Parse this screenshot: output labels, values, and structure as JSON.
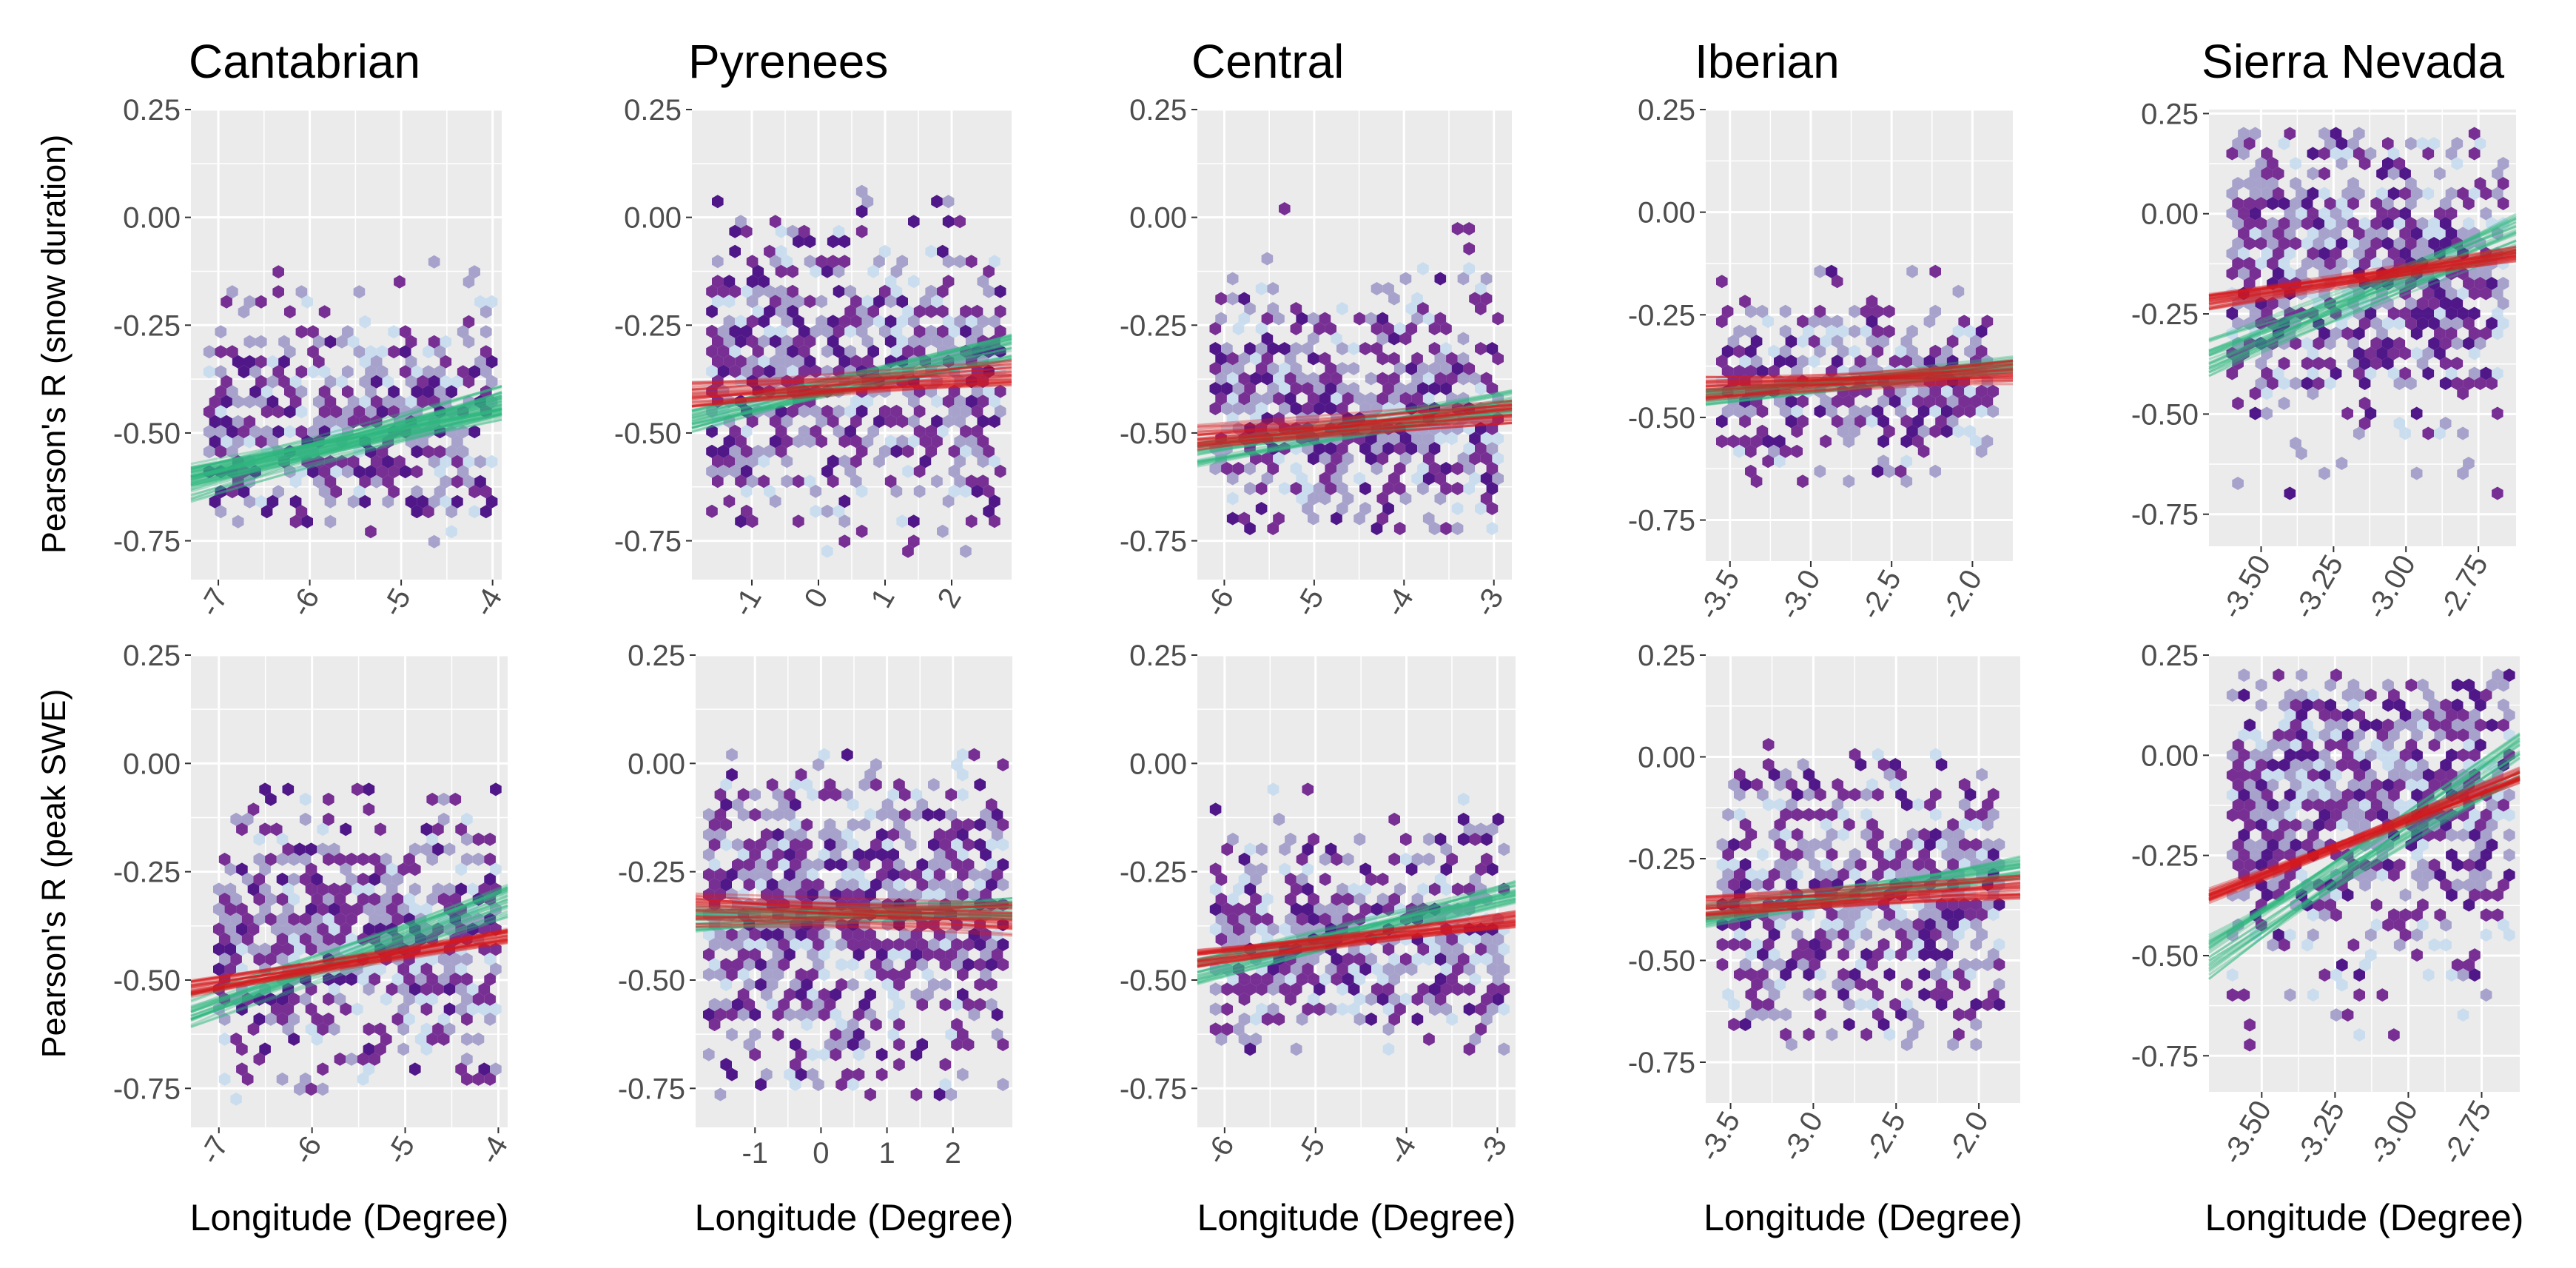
{
  "figure": {
    "x_axis_title": "Longitude (Degree)",
    "row_titles": [
      "Pearson's R (snow duration)",
      "Pearson's R (peak SWE)"
    ]
  },
  "colors": {
    "panel_bg": "#ebebeb",
    "grid": "#ffffff",
    "hex_light": "#c6dbef",
    "hex_mid": "#9e9ac8",
    "hex_dark": "#6a1b8a",
    "hex_darkest": "#3f007d",
    "fit_green": "#2eb67d",
    "fit_red": "#d7191c"
  },
  "chart_data": [
    {
      "type": "hexbin-scatter",
      "region": "Cantabrian",
      "row": "snow duration",
      "title": "Cantabrian",
      "xlabel": "",
      "ylabel": "Pearson's R (snow duration)",
      "xlim": [
        -7.3,
        -3.9
      ],
      "ylim": [
        -0.84,
        0.25
      ],
      "x_ticks": [
        -7,
        -6,
        -5,
        -4
      ],
      "x_tick_labels": [
        "-7",
        "-6",
        "-5",
        "-4"
      ],
      "y_ticks": [
        -0.75,
        -0.5,
        -0.25,
        0,
        0.25
      ],
      "y_tick_labels": [
        "-0.75",
        "-0.50",
        "-0.25",
        "0.00",
        "0.25"
      ],
      "x_label_angle": -60,
      "points_x_range": [
        -7.1,
        -4.0
      ],
      "points_y_range": [
        -0.76,
        -0.08
      ],
      "point_centre_y": -0.47,
      "point_spread_y": 0.13,
      "fits": [
        {
          "color": "green",
          "x": [
            -7.3,
            -3.9
          ],
          "y": [
            -0.62,
            -0.43
          ],
          "spread": 0.04
        },
        {
          "color": "green",
          "x": [
            -7.3,
            -3.9
          ],
          "y": [
            -0.6,
            -0.44
          ],
          "spread": 0.03
        }
      ]
    },
    {
      "type": "hexbin-scatter",
      "region": "Pyrenees",
      "row": "snow duration",
      "title": "Pyrenees",
      "xlabel": "",
      "ylabel": "",
      "xlim": [
        -1.9,
        2.9
      ],
      "ylim": [
        -0.84,
        0.25
      ],
      "x_ticks": [
        -1,
        0,
        1,
        2
      ],
      "x_tick_labels": [
        "-1",
        "0",
        "1",
        "2"
      ],
      "y_ticks": [
        -0.75,
        -0.5,
        -0.25,
        0,
        0.25
      ],
      "y_tick_labels": [
        "-0.75",
        "-0.50",
        "-0.25",
        "0.00",
        "0.25"
      ],
      "x_label_angle": -60,
      "points_x_range": [
        -1.6,
        2.8
      ],
      "points_y_range": [
        -0.78,
        0.06
      ],
      "point_centre_y": -0.37,
      "point_spread_y": 0.18,
      "fits": [
        {
          "color": "green",
          "x": [
            -1.9,
            2.9
          ],
          "y": [
            -0.47,
            -0.3
          ],
          "spread": 0.03
        },
        {
          "color": "red",
          "x": [
            -1.9,
            2.9
          ],
          "y": [
            -0.41,
            -0.36
          ],
          "spread": 0.03
        }
      ]
    },
    {
      "type": "hexbin-scatter",
      "region": "Central",
      "row": "snow duration",
      "title": "Central",
      "xlabel": "",
      "ylabel": "",
      "xlim": [
        -6.3,
        -2.8
      ],
      "ylim": [
        -0.84,
        0.25
      ],
      "x_ticks": [
        -6,
        -5,
        -4,
        -3
      ],
      "x_tick_labels": [
        "-6",
        "-5",
        "-4",
        "-3"
      ],
      "y_ticks": [
        -0.75,
        -0.5,
        -0.25,
        0,
        0.25
      ],
      "y_tick_labels": [
        "-0.75",
        "-0.50",
        "-0.25",
        "0.00",
        "0.25"
      ],
      "x_label_angle": -60,
      "points_x_range": [
        -6.1,
        -2.9
      ],
      "points_y_range": [
        -0.74,
        0.02
      ],
      "point_centre_y": -0.45,
      "point_spread_y": 0.15,
      "fits": [
        {
          "color": "green",
          "x": [
            -6.3,
            -2.8
          ],
          "y": [
            -0.55,
            -0.43
          ],
          "spread": 0.03
        },
        {
          "color": "red",
          "x": [
            -6.3,
            -2.8
          ],
          "y": [
            -0.51,
            -0.45
          ],
          "spread": 0.03
        }
      ]
    },
    {
      "type": "hexbin-scatter",
      "region": "Iberian",
      "row": "snow duration",
      "title": "Iberian",
      "xlabel": "",
      "ylabel": "",
      "xlim": [
        -3.65,
        -1.75
      ],
      "ylim": [
        -0.85,
        0.25
      ],
      "x_ticks": [
        -3.5,
        -3.0,
        -2.5,
        -2.0
      ],
      "x_tick_labels": [
        "-3.5",
        "-3.0",
        "-2.5",
        "-2.0"
      ],
      "y_ticks": [
        -0.75,
        -0.5,
        -0.25,
        0,
        0.25
      ],
      "y_tick_labels": [
        "-0.75",
        "-0.50",
        "-0.25",
        "0.00",
        "0.25"
      ],
      "x_label_angle": -60,
      "points_x_range": [
        -3.55,
        -1.85
      ],
      "points_y_range": [
        -0.66,
        -0.12
      ],
      "point_centre_y": -0.42,
      "point_spread_y": 0.1,
      "fits": [
        {
          "color": "green",
          "x": [
            -3.65,
            -1.75
          ],
          "y": [
            -0.45,
            -0.37
          ],
          "spread": 0.02
        },
        {
          "color": "red",
          "x": [
            -3.65,
            -1.75
          ],
          "y": [
            -0.43,
            -0.39
          ],
          "spread": 0.03
        }
      ]
    },
    {
      "type": "hexbin-scatter",
      "region": "Sierra Nevada",
      "row": "snow duration",
      "title": "Sierra Nevada",
      "xlabel": "",
      "ylabel": "",
      "xlim": [
        -3.68,
        -2.62
      ],
      "ylim": [
        -0.83,
        0.26
      ],
      "x_ticks": [
        -3.5,
        -3.25,
        -3.0,
        -2.75
      ],
      "x_tick_labels": [
        "-3.50",
        "-3.25",
        "-3.00",
        "-2.75"
      ],
      "y_ticks": [
        -0.75,
        -0.5,
        -0.25,
        0,
        0.25
      ],
      "y_tick_labels": [
        "-0.75",
        "-0.50",
        "-0.25",
        "0.00",
        "0.25"
      ],
      "x_label_angle": -60,
      "points_x_range": [
        -3.6,
        -2.65
      ],
      "points_y_range": [
        -0.7,
        0.2
      ],
      "point_centre_y": -0.12,
      "point_spread_y": 0.2,
      "fits": [
        {
          "color": "green",
          "x": [
            -3.68,
            -2.62
          ],
          "y": [
            -0.36,
            -0.05
          ],
          "spread": 0.05
        },
        {
          "color": "red",
          "x": [
            -3.68,
            -2.62
          ],
          "y": [
            -0.22,
            -0.1
          ],
          "spread": 0.02
        }
      ]
    },
    {
      "type": "hexbin-scatter",
      "region": "Cantabrian",
      "row": "peak SWE",
      "title": "",
      "xlabel": "Longitude (Degree)",
      "ylabel": "Pearson's R (peak SWE)",
      "xlim": [
        -7.3,
        -3.9
      ],
      "ylim": [
        -0.84,
        0.25
      ],
      "x_ticks": [
        -7,
        -6,
        -5,
        -4
      ],
      "x_tick_labels": [
        "-7",
        "-6",
        "-5",
        "-4"
      ],
      "y_ticks": [
        -0.75,
        -0.5,
        -0.25,
        0,
        0.25
      ],
      "y_tick_labels": [
        "-0.75",
        "-0.50",
        "-0.25",
        "0.00",
        "0.25"
      ],
      "x_label_angle": -60,
      "points_x_range": [
        -7.0,
        -4.0
      ],
      "points_y_range": [
        -0.78,
        -0.06
      ],
      "point_centre_y": -0.4,
      "point_spread_y": 0.16,
      "fits": [
        {
          "color": "green",
          "x": [
            -7.3,
            -3.9
          ],
          "y": [
            -0.57,
            -0.32
          ],
          "spread": 0.04
        },
        {
          "color": "red",
          "x": [
            -7.3,
            -3.9
          ],
          "y": [
            -0.52,
            -0.4
          ],
          "spread": 0.02
        }
      ]
    },
    {
      "type": "hexbin-scatter",
      "region": "Pyrenees",
      "row": "peak SWE",
      "title": "",
      "xlabel": "Longitude (Degree)",
      "ylabel": "",
      "xlim": [
        -1.9,
        2.9
      ],
      "ylim": [
        -0.84,
        0.25
      ],
      "x_ticks": [
        -1,
        0,
        1,
        2
      ],
      "x_tick_labels": [
        "-1",
        "0",
        "1",
        "2"
      ],
      "y_ticks": [
        -0.75,
        -0.5,
        -0.25,
        0,
        0.25
      ],
      "y_tick_labels": [
        "-0.75",
        "-0.50",
        "-0.25",
        "0.00",
        "0.25"
      ],
      "x_label_angle": 0,
      "points_x_range": [
        -1.7,
        2.8
      ],
      "points_y_range": [
        -0.78,
        0.02
      ],
      "point_centre_y": -0.35,
      "point_spread_y": 0.2,
      "fits": [
        {
          "color": "green",
          "x": [
            -1.9,
            2.9
          ],
          "y": [
            -0.36,
            -0.33
          ],
          "spread": 0.03
        },
        {
          "color": "red",
          "x": [
            -1.9,
            2.9
          ],
          "y": [
            -0.34,
            -0.36
          ],
          "spread": 0.04
        }
      ]
    },
    {
      "type": "hexbin-scatter",
      "region": "Central",
      "row": "peak SWE",
      "title": "",
      "xlabel": "Longitude (Degree)",
      "ylabel": "",
      "xlim": [
        -6.3,
        -2.8
      ],
      "ylim": [
        -0.84,
        0.25
      ],
      "x_ticks": [
        -6,
        -5,
        -4,
        -3
      ],
      "x_tick_labels": [
        "-6",
        "-5",
        "-4",
        "-3"
      ],
      "y_ticks": [
        -0.75,
        -0.5,
        -0.25,
        0,
        0.25
      ],
      "y_tick_labels": [
        "-0.75",
        "-0.50",
        "-0.25",
        "0.00",
        "0.25"
      ],
      "x_label_angle": -60,
      "points_x_range": [
        -6.1,
        -2.9
      ],
      "points_y_range": [
        -0.68,
        -0.06
      ],
      "point_centre_y": -0.42,
      "point_spread_y": 0.13,
      "fits": [
        {
          "color": "green",
          "x": [
            -6.3,
            -2.8
          ],
          "y": [
            -0.48,
            -0.3
          ],
          "spread": 0.03
        },
        {
          "color": "red",
          "x": [
            -6.3,
            -2.8
          ],
          "y": [
            -0.45,
            -0.36
          ],
          "spread": 0.02
        }
      ]
    },
    {
      "type": "hexbin-scatter",
      "region": "Iberian",
      "row": "peak SWE",
      "title": "",
      "xlabel": "Longitude (Degree)",
      "ylabel": "",
      "xlim": [
        -3.65,
        -1.75
      ],
      "ylim": [
        -0.85,
        0.25
      ],
      "x_ticks": [
        -3.5,
        -3.0,
        -2.5,
        -2.0
      ],
      "x_tick_labels": [
        "-3.5",
        "-3.0",
        "-2.5",
        "-2.0"
      ],
      "y_ticks": [
        -0.75,
        -0.5,
        -0.25,
        0,
        0.25
      ],
      "y_tick_labels": [
        "-0.75",
        "-0.50",
        "-0.25",
        "0.00",
        "0.25"
      ],
      "x_label_angle": -60,
      "points_x_range": [
        -3.55,
        -1.85
      ],
      "points_y_range": [
        -0.72,
        0.03
      ],
      "point_centre_y": -0.35,
      "point_spread_y": 0.17,
      "fits": [
        {
          "color": "green",
          "x": [
            -3.65,
            -1.75
          ],
          "y": [
            -0.39,
            -0.27
          ],
          "spread": 0.03
        },
        {
          "color": "red",
          "x": [
            -3.65,
            -1.75
          ],
          "y": [
            -0.37,
            -0.32
          ],
          "spread": 0.03
        }
      ]
    },
    {
      "type": "hexbin-scatter",
      "region": "Sierra Nevada",
      "row": "peak SWE",
      "title": "",
      "xlabel": "Longitude (Degree)",
      "ylabel": "",
      "xlim": [
        -3.68,
        -2.62
      ],
      "ylim": [
        -0.84,
        0.25
      ],
      "x_ticks": [
        -3.5,
        -3.25,
        -3.0,
        -2.75
      ],
      "x_tick_labels": [
        "-3.50",
        "-3.25",
        "-3.00",
        "-2.75"
      ],
      "y_ticks": [
        -0.75,
        -0.5,
        -0.25,
        0,
        0.25
      ],
      "y_tick_labels": [
        "-0.75",
        "-0.50",
        "-0.25",
        "0.00",
        "0.25"
      ],
      "x_label_angle": -60,
      "points_x_range": [
        -3.6,
        -2.65
      ],
      "points_y_range": [
        -0.74,
        0.2
      ],
      "point_centre_y": -0.12,
      "point_spread_y": 0.22,
      "fits": [
        {
          "color": "green",
          "x": [
            -3.68,
            -2.62
          ],
          "y": [
            -0.5,
            0.0
          ],
          "spread": 0.06
        },
        {
          "color": "red",
          "x": [
            -3.68,
            -2.62
          ],
          "y": [
            -0.35,
            -0.05
          ],
          "spread": 0.02
        }
      ]
    }
  ]
}
